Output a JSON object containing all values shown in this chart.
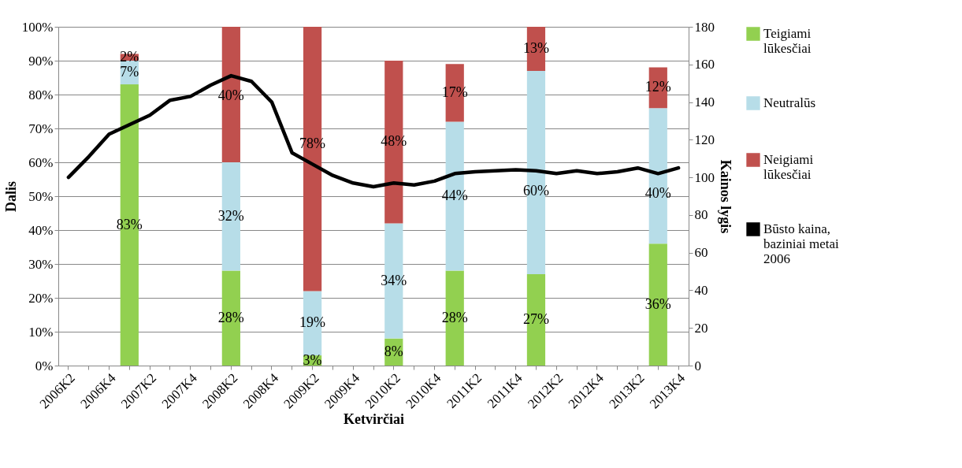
{
  "chart_data": {
    "type": "bar",
    "stacked": true,
    "xlabel": "Ketvirčiai",
    "ylabel": "Dalis",
    "y2label": "Kainos lygis",
    "categories": [
      "2006K2",
      null,
      "2006K4",
      null,
      "2007K2",
      null,
      "2007K4",
      null,
      "2008K2",
      null,
      "2008K4",
      null,
      "2009K2",
      null,
      "2009K4",
      null,
      "2010K2",
      null,
      "2010K4",
      null,
      "2011K2",
      null,
      "2011K4",
      null,
      "2012K2",
      null,
      "2012K4",
      null,
      "2013K2",
      null,
      "2013K4"
    ],
    "series": [
      {
        "name": "Teigiami lūkesčiai",
        "color": "#92d050",
        "values": [
          null,
          null,
          null,
          83,
          null,
          null,
          null,
          null,
          28,
          null,
          null,
          null,
          3,
          null,
          null,
          null,
          8,
          null,
          null,
          28,
          null,
          null,
          null,
          27,
          null,
          null,
          null,
          null,
          null,
          36,
          null
        ],
        "value_labels": [
          null,
          null,
          null,
          "83%",
          null,
          null,
          null,
          null,
          "28%",
          null,
          null,
          null,
          "3%",
          null,
          null,
          null,
          "8%",
          null,
          null,
          "28%",
          null,
          null,
          null,
          "27%",
          null,
          null,
          null,
          null,
          null,
          "36%",
          null
        ]
      },
      {
        "name": "Neutralūs",
        "color": "#b7dde8",
        "values": [
          null,
          null,
          null,
          7,
          null,
          null,
          null,
          null,
          32,
          null,
          null,
          null,
          19,
          null,
          null,
          null,
          34,
          null,
          null,
          44,
          null,
          null,
          null,
          60,
          null,
          null,
          null,
          null,
          null,
          40,
          null
        ],
        "value_labels": [
          null,
          null,
          null,
          "7%",
          null,
          null,
          null,
          null,
          "32%",
          null,
          null,
          null,
          "19%",
          null,
          null,
          null,
          "34%",
          null,
          null,
          "44%",
          null,
          null,
          null,
          "60%",
          null,
          null,
          null,
          null,
          null,
          "40%",
          null
        ]
      },
      {
        "name": "Neigiami lūkesčiai",
        "color": "#c0504d",
        "values": [
          null,
          null,
          null,
          2,
          null,
          null,
          null,
          null,
          40,
          null,
          null,
          null,
          78,
          null,
          null,
          null,
          48,
          null,
          null,
          17,
          null,
          null,
          null,
          13,
          null,
          null,
          null,
          null,
          null,
          12,
          null
        ],
        "value_labels": [
          null,
          null,
          null,
          "2%",
          null,
          null,
          null,
          null,
          "40%",
          null,
          null,
          null,
          "78%",
          null,
          null,
          null,
          "48%",
          null,
          null,
          "17%",
          null,
          null,
          null,
          "13%",
          null,
          null,
          null,
          null,
          null,
          "12%",
          null
        ]
      },
      {
        "name": "Būsto kaina, baziniai metai 2006",
        "type": "line",
        "axis": "y2",
        "color": "#000000",
        "values": [
          100,
          111,
          123,
          128,
          133,
          141,
          143,
          149,
          154,
          151,
          140,
          113,
          107,
          101,
          97,
          95,
          97,
          96,
          98,
          102,
          103,
          103.5,
          104,
          103.5,
          102,
          103.5,
          102,
          103,
          105,
          102,
          105
        ]
      }
    ],
    "ylim": [
      0,
      100
    ],
    "yticks": [
      {
        "value": 0,
        "label": "0%"
      },
      {
        "value": 10,
        "label": "10%"
      },
      {
        "value": 20,
        "label": "20%"
      },
      {
        "value": 30,
        "label": "30%"
      },
      {
        "value": 40,
        "label": "40%"
      },
      {
        "value": 50,
        "label": "50%"
      },
      {
        "value": 60,
        "label": "60%"
      },
      {
        "value": 70,
        "label": "70%"
      },
      {
        "value": 80,
        "label": "80%"
      },
      {
        "value": 90,
        "label": "90%"
      },
      {
        "value": 100,
        "label": "100%"
      }
    ],
    "y2lim": [
      0,
      180
    ],
    "y2ticks": [
      0,
      20,
      40,
      60,
      80,
      100,
      120,
      140,
      160,
      180
    ],
    "grid": "y",
    "legend": "right"
  }
}
